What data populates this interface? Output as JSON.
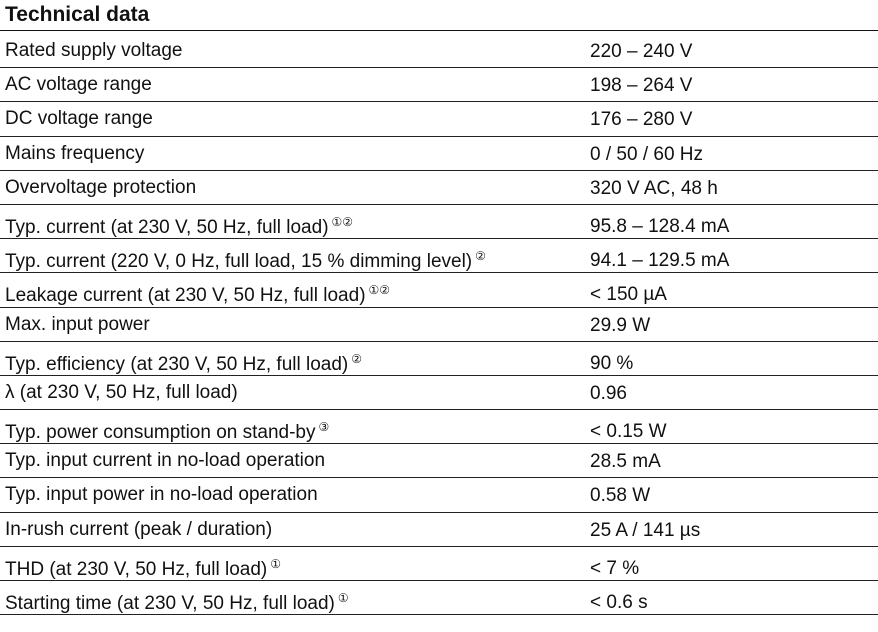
{
  "title": "Technical data",
  "rows": [
    {
      "param": "Rated supply voltage",
      "note": "",
      "value": "220 – 240 V"
    },
    {
      "param": "AC voltage range",
      "note": "",
      "value": "198 – 264 V"
    },
    {
      "param": "DC voltage range",
      "note": "",
      "value": "176 – 280 V"
    },
    {
      "param": "Mains frequency",
      "note": "",
      "value": "0 / 50 / 60 Hz"
    },
    {
      "param": "Overvoltage protection",
      "note": "",
      "value": "320 V AC, 48 h"
    },
    {
      "param": "Typ. current (at 230 V, 50 Hz, full load)",
      "note": "①②",
      "value": "95.8 – 128.4 mA"
    },
    {
      "param": "Typ. current (220 V, 0 Hz, full load, 15 % dimming level)",
      "note": "②",
      "value": "94.1 – 129.5 mA"
    },
    {
      "param": "Leakage current (at 230 V, 50 Hz, full load)",
      "note": "①②",
      "value": "< 150 µA"
    },
    {
      "param": "Max. input power",
      "note": "",
      "value": "29.9 W"
    },
    {
      "param": "Typ. efficiency (at 230 V, 50 Hz, full load)",
      "note": "②",
      "value": "90 %"
    },
    {
      "param": "λ (at 230 V, 50 Hz, full load)",
      "note": "",
      "value": "0.96"
    },
    {
      "param": "Typ. power consumption on stand-by",
      "note": "③",
      "value": "< 0.15 W"
    },
    {
      "param": "Typ. input current in no-load operation",
      "note": "",
      "value": "28.5 mA"
    },
    {
      "param": "Typ. input power in no-load operation",
      "note": "",
      "value": "0.58 W"
    },
    {
      "param": "In-rush current (peak / duration)",
      "note": "",
      "value": "25 A / 141 µs"
    },
    {
      "param": "THD (at 230 V, 50 Hz, full load)",
      "note": "①",
      "value": "< 7 %"
    },
    {
      "param": "Starting time (at 230 V, 50 Hz, full load)",
      "note": "①",
      "value": "< 0.6 s"
    }
  ]
}
